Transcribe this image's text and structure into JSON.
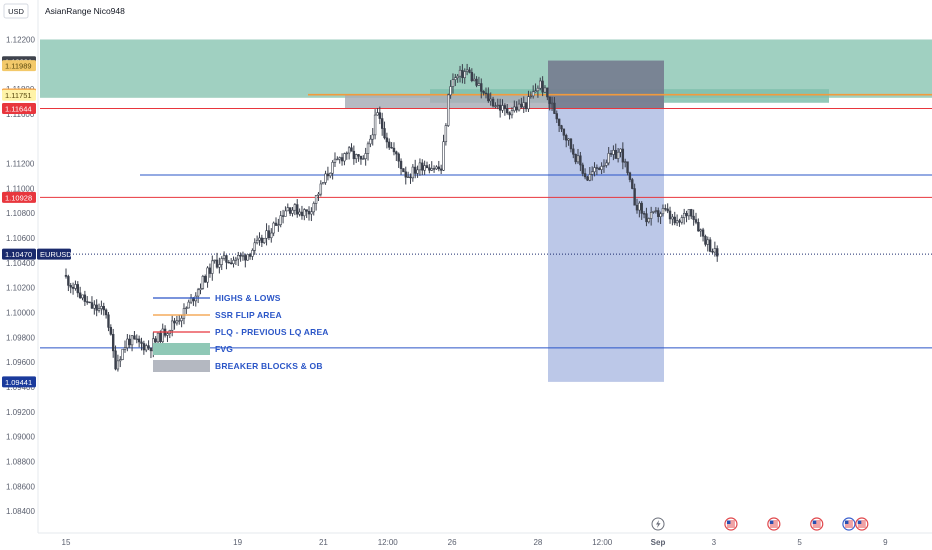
{
  "header": {
    "unit_label": "USD",
    "title": "AsianRange Nico948"
  },
  "chart_data": {
    "type": "candlestick",
    "symbol": "EURUSD",
    "ylim": [
      1.0832,
      1.1222
    ],
    "y_ticks": [
      "1.12200",
      "1.11800",
      "1.11600",
      "1.11200",
      "1.11000",
      "1.10800",
      "1.10600",
      "1.10400",
      "1.10200",
      "1.10000",
      "1.09800",
      "1.09600",
      "1.09400",
      "1.09200",
      "1.09000",
      "1.08800",
      "1.08600",
      "1.08400"
    ],
    "x_ticks": [
      {
        "label": "15",
        "day": 0
      },
      {
        "label": "19",
        "day": 4
      },
      {
        "label": "21",
        "day": 6
      },
      {
        "label": "12:00",
        "day": 7.5
      },
      {
        "label": "26",
        "day": 9
      },
      {
        "label": "28",
        "day": 11
      },
      {
        "label": "12:00",
        "day": 12.5
      },
      {
        "label": "Sep",
        "day": 13.8
      },
      {
        "label": "3",
        "day": 15.1
      },
      {
        "label": "5",
        "day": 17.1
      },
      {
        "label": "9",
        "day": 19.1
      },
      {
        "label": "11",
        "day": 21.1
      }
    ],
    "price_badges": [
      {
        "value": "1.12021",
        "color": "#3f434d",
        "text_color": "#ffffff"
      },
      {
        "value": "1.11989",
        "color": "#f3c96a",
        "text_color": "#5a4a10"
      },
      {
        "value": "1.11761",
        "color": "#f29a3c",
        "text_color": "#ffffff"
      },
      {
        "value": "1.11751",
        "color": "#fff3a8",
        "text_color": "#5a4a10"
      },
      {
        "value": "1.11644",
        "color": "#e8363d",
        "text_color": "#ffffff"
      },
      {
        "value": "1.10928",
        "color": "#e8363d",
        "text_color": "#ffffff"
      },
      {
        "value": "1.10470",
        "color": "#1a2a6c",
        "text_color": "#ffffff",
        "label": "EURUSD"
      },
      {
        "value": "1.09441",
        "color": "#1a3a9c",
        "text_color": "#ffffff"
      }
    ],
    "horizontal_lines": [
      {
        "price": 1.11644,
        "color": "#e8363d",
        "type": "PLQ"
      },
      {
        "price": 1.10928,
        "color": "#e8363d",
        "type": "PLQ"
      },
      {
        "price": 1.11108,
        "color": "#2a55c7",
        "type": "HIGHS & LOWS"
      },
      {
        "price": 1.09715,
        "color": "#2a55c7",
        "type": "HIGHS & LOWS"
      },
      {
        "price": 1.11755,
        "color": "#f29a3c",
        "type": "SSR FLIP AREA"
      },
      {
        "price": 1.1047,
        "color": "#1a2a6c",
        "type": "last price",
        "dotted": true
      }
    ],
    "zones": [
      {
        "type": "FVG",
        "color": "#8fc8b6",
        "y_top": 1.122,
        "y_bottom": 1.1173
      },
      {
        "type": "FVG",
        "color": "#7fc0ad",
        "y_top": 1.118,
        "y_bottom": 1.1169
      },
      {
        "type": "BREAKER BLOCKS & OB",
        "color": "#a9aeb7",
        "y_top": 1.1176,
        "y_bottom": 1.1164
      },
      {
        "type": "BREAKER BLOCKS & OB",
        "color": "#6f7480",
        "y_top": 1.1203,
        "y_bottom": 1.1164
      },
      {
        "type": "projection",
        "color": "#8fa3d8",
        "y_top": 1.1203,
        "y_bottom": 1.09441
      }
    ],
    "legend": [
      {
        "label": "HIGHS & LOWS",
        "swatch": "line",
        "color": "#2a55c7"
      },
      {
        "label": "SSR FLIP AREA",
        "swatch": "line",
        "color": "#f29a3c"
      },
      {
        "label": "PLQ - PREVIOUS LQ AREA",
        "swatch": "line",
        "color": "#e8363d"
      },
      {
        "label": "FVG",
        "swatch": "box",
        "color": "#8fc8b6"
      },
      {
        "label": "BREAKER BLOCKS & OB",
        "swatch": "box",
        "color": "#b4b8c1"
      }
    ],
    "key_prices": [
      {
        "day": 0.0,
        "price": 1.103
      },
      {
        "day": 0.6,
        "price": 1.1005
      },
      {
        "day": 1.0,
        "price": 1.1
      },
      {
        "day": 1.2,
        "price": 1.0958
      },
      {
        "day": 1.5,
        "price": 1.0978
      },
      {
        "day": 2.0,
        "price": 1.0972
      },
      {
        "day": 2.8,
        "price": 1.1
      },
      {
        "day": 3.5,
        "price": 1.104
      },
      {
        "day": 4.2,
        "price": 1.1045
      },
      {
        "day": 4.7,
        "price": 1.106
      },
      {
        "day": 5.2,
        "price": 1.1085
      },
      {
        "day": 5.7,
        "price": 1.108
      },
      {
        "day": 6.2,
        "price": 1.1115
      },
      {
        "day": 6.6,
        "price": 1.113
      },
      {
        "day": 7.0,
        "price": 1.112
      },
      {
        "day": 7.3,
        "price": 1.116
      },
      {
        "day": 7.6,
        "price": 1.1135
      },
      {
        "day": 8.0,
        "price": 1.111
      },
      {
        "day": 8.4,
        "price": 1.112
      },
      {
        "day": 8.8,
        "price": 1.1115
      },
      {
        "day": 9.0,
        "price": 1.1185
      },
      {
        "day": 9.4,
        "price": 1.1195
      },
      {
        "day": 9.8,
        "price": 1.1175
      },
      {
        "day": 10.3,
        "price": 1.1162
      },
      {
        "day": 10.8,
        "price": 1.1168
      },
      {
        "day": 11.1,
        "price": 1.1185
      },
      {
        "day": 11.4,
        "price": 1.1165
      },
      {
        "day": 11.8,
        "price": 1.1135
      },
      {
        "day": 12.2,
        "price": 1.1108
      },
      {
        "day": 12.6,
        "price": 1.1122
      },
      {
        "day": 13.0,
        "price": 1.113
      },
      {
        "day": 13.3,
        "price": 1.109
      },
      {
        "day": 13.6,
        "price": 1.1075
      },
      {
        "day": 14.0,
        "price": 1.1082
      },
      {
        "day": 14.3,
        "price": 1.107
      },
      {
        "day": 14.6,
        "price": 1.1084
      },
      {
        "day": 14.9,
        "price": 1.1062
      },
      {
        "day": 15.2,
        "price": 1.1047
      }
    ]
  },
  "event_icons": [
    {
      "name": "lightning-event-icon",
      "day": 13.8,
      "color": "#6b6f7a"
    },
    {
      "name": "us-flag-icon",
      "day": 15.5,
      "color": "#e0464a"
    },
    {
      "name": "us-flag-icon",
      "day": 16.5,
      "color": "#e0464a"
    },
    {
      "name": "us-flag-icon",
      "day": 17.5,
      "color": "#e0464a"
    },
    {
      "name": "us-flag-icon",
      "day": 18.25,
      "color": "#3a5fcd"
    },
    {
      "name": "us-flag-icon",
      "day": 18.55,
      "color": "#e0464a"
    }
  ]
}
